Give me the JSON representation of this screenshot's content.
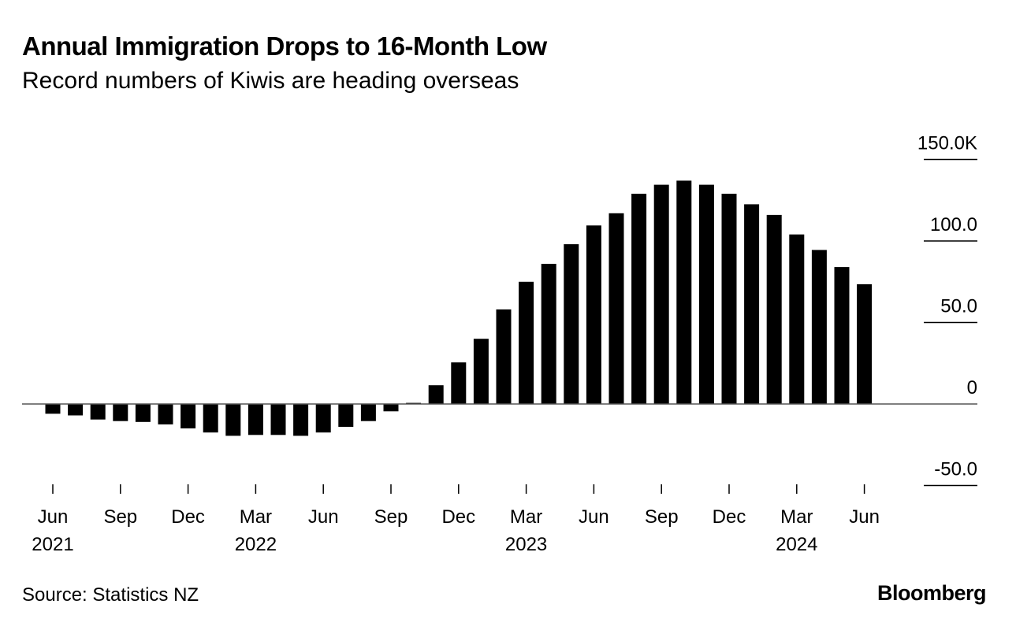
{
  "header": {
    "title": "Annual Immigration Drops to 16-Month Low",
    "subtitle": "Record numbers of Kiwis are heading overseas"
  },
  "footer": {
    "source": "Source: Statistics NZ",
    "brand": "Bloomberg"
  },
  "colors": {
    "bar": "#000000",
    "grid": "#000000",
    "text": "#000000"
  },
  "chart_data": {
    "type": "bar",
    "title": "Annual Immigration Drops to 16-Month Low",
    "subtitle": "Record numbers of Kiwis are heading overseas",
    "xlabel": "",
    "ylabel": "",
    "ylim": [
      -50,
      150
    ],
    "yticks": [
      {
        "value": 150,
        "label": "150.0K"
      },
      {
        "value": 100,
        "label": "100.0"
      },
      {
        "value": 50,
        "label": "50.0"
      },
      {
        "value": 0,
        "label": "0"
      },
      {
        "value": -50,
        "label": "-50.0"
      }
    ],
    "categories": [
      "Jun 2021",
      "Jul 2021",
      "Aug 2021",
      "Sep 2021",
      "Oct 2021",
      "Nov 2021",
      "Dec 2021",
      "Jan 2022",
      "Feb 2022",
      "Mar 2022",
      "Apr 2022",
      "May 2022",
      "Jun 2022",
      "Jul 2022",
      "Aug 2022",
      "Sep 2022",
      "Oct 2022",
      "Nov 2022",
      "Dec 2022",
      "Jan 2023",
      "Feb 2023",
      "Mar 2023",
      "Apr 2023",
      "May 2023",
      "Jun 2023",
      "Jul 2023",
      "Aug 2023",
      "Sep 2023",
      "Oct 2023",
      "Nov 2023",
      "Dec 2023",
      "Jan 2024",
      "Feb 2024",
      "Mar 2024",
      "Apr 2024",
      "May 2024",
      "Jun 2024"
    ],
    "values": [
      -6,
      -7,
      -9.5,
      -10.5,
      -11,
      -12.5,
      -15,
      -17.5,
      -19.5,
      -19,
      -19,
      -19.5,
      -17.5,
      -14,
      -10.5,
      -4.5,
      0.7,
      11.5,
      25.5,
      40,
      58,
      75,
      86,
      98,
      109.5,
      117,
      129,
      134.5,
      137,
      134.5,
      129,
      122.5,
      116,
      104,
      94.5,
      84,
      73.5
    ],
    "xticks": [
      {
        "index": 0,
        "month": "Jun",
        "year": "2021"
      },
      {
        "index": 3,
        "month": "Sep",
        "year": ""
      },
      {
        "index": 6,
        "month": "Dec",
        "year": ""
      },
      {
        "index": 9,
        "month": "Mar",
        "year": "2022"
      },
      {
        "index": 12,
        "month": "Jun",
        "year": ""
      },
      {
        "index": 15,
        "month": "Sep",
        "year": ""
      },
      {
        "index": 18,
        "month": "Dec",
        "year": ""
      },
      {
        "index": 21,
        "month": "Mar",
        "year": "2023"
      },
      {
        "index": 24,
        "month": "Jun",
        "year": ""
      },
      {
        "index": 27,
        "month": "Sep",
        "year": ""
      },
      {
        "index": 30,
        "month": "Dec",
        "year": ""
      },
      {
        "index": 33,
        "month": "Mar",
        "year": "2024"
      },
      {
        "index": 36,
        "month": "Jun",
        "year": ""
      }
    ],
    "legend": "none",
    "grid": false
  }
}
